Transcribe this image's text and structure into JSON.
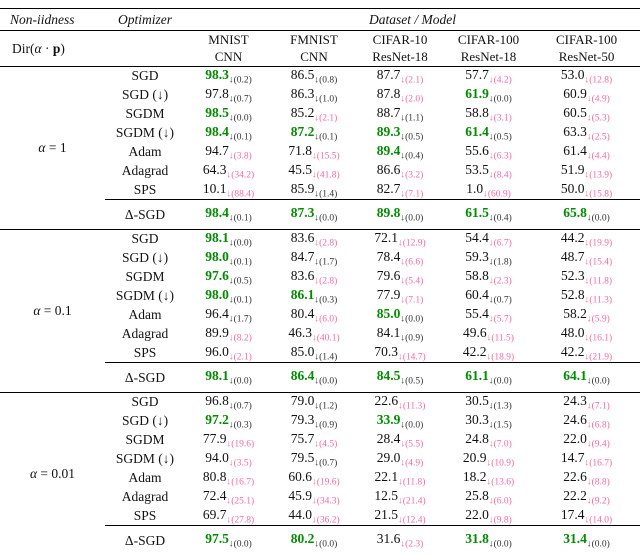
{
  "table": {
    "header": {
      "non_iidness": "Non-iidness",
      "optimizer": "Optimizer",
      "dataset_model": "Dataset / Model",
      "dir": {
        "pre": "Dir(",
        "alpha": "α",
        "dot": " · ",
        "p": "p",
        "post": ")"
      },
      "datasets": [
        {
          "dataset": "MNIST",
          "model": "CNN"
        },
        {
          "dataset": "FMNIST",
          "model": "CNN"
        },
        {
          "dataset": "CIFAR-10",
          "model": "ResNet-18"
        },
        {
          "dataset": "CIFAR-100",
          "model": "ResNet-18"
        },
        {
          "dataset": "CIFAR-100",
          "model": "ResNet-50"
        }
      ]
    },
    "legend": {
      "down_arrow": "↓"
    },
    "colors": {
      "best_green": "#028a02",
      "drop_pink": "#f26ba4",
      "text": "#111111"
    },
    "blocks": [
      {
        "alpha_symbol": "α",
        "alpha_eq": "= 1",
        "rows": [
          {
            "optimizer": "SGD",
            "cells": [
              [
                "98.3",
                "0.2",
                "g",
                "k"
              ],
              [
                "86.5",
                "0.8",
                "k",
                "k"
              ],
              [
                "87.7",
                "2.1",
                "k",
                "p"
              ],
              [
                "57.7",
                "4.2",
                "k",
                "p"
              ],
              [
                "53.0",
                "12.8",
                "k",
                "p"
              ]
            ]
          },
          {
            "optimizer": "SGD (↓)",
            "cells": [
              [
                "97.8",
                "0.7",
                "k",
                "k"
              ],
              [
                "86.3",
                "1.0",
                "k",
                "k"
              ],
              [
                "87.8",
                "2.0",
                "k",
                "p"
              ],
              [
                "61.9",
                "0.0",
                "g",
                "k"
              ],
              [
                "60.9",
                "4.9",
                "k",
                "p"
              ]
            ]
          },
          {
            "optimizer": "SGDM",
            "cells": [
              [
                "98.5",
                "0.0",
                "g",
                "k"
              ],
              [
                "85.2",
                "2.1",
                "k",
                "p"
              ],
              [
                "88.7",
                "1.1",
                "k",
                "k"
              ],
              [
                "58.8",
                "3.1",
                "k",
                "p"
              ],
              [
                "60.5",
                "5.3",
                "k",
                "p"
              ]
            ]
          },
          {
            "optimizer": "SGDM (↓)",
            "cells": [
              [
                "98.4",
                "0.1",
                "g",
                "k"
              ],
              [
                "87.2",
                "0.1",
                "g",
                "k"
              ],
              [
                "89.3",
                "0.5",
                "g",
                "k"
              ],
              [
                "61.4",
                "0.5",
                "g",
                "k"
              ],
              [
                "63.3",
                "2.5",
                "k",
                "p"
              ]
            ]
          },
          {
            "optimizer": "Adam",
            "cells": [
              [
                "94.7",
                "3.8",
                "k",
                "p"
              ],
              [
                "71.8",
                "15.5",
                "k",
                "p"
              ],
              [
                "89.4",
                "0.4",
                "g",
                "k"
              ],
              [
                "55.6",
                "6.3",
                "k",
                "p"
              ],
              [
                "61.4",
                "4.4",
                "k",
                "p"
              ]
            ]
          },
          {
            "optimizer": "Adagrad",
            "cells": [
              [
                "64.3",
                "34.2",
                "k",
                "p"
              ],
              [
                "45.5",
                "41.8",
                "k",
                "p"
              ],
              [
                "86.6",
                "3.2",
                "k",
                "p"
              ],
              [
                "53.5",
                "8.4",
                "k",
                "p"
              ],
              [
                "51.9",
                "13.9",
                "k",
                "p"
              ]
            ]
          },
          {
            "optimizer": "SPS",
            "cells": [
              [
                "10.1",
                "88.4",
                "k",
                "p"
              ],
              [
                "85.9",
                "1.4",
                "k",
                "k"
              ],
              [
                "82.7",
                "7.1",
                "k",
                "p"
              ],
              [
                "1.0",
                "60.9",
                "k",
                "p"
              ],
              [
                "50.0",
                "15.8",
                "k",
                "p"
              ]
            ]
          }
        ],
        "delta": {
          "optimizer": "Δ-SGD",
          "cells": [
            [
              "98.4",
              "0.1",
              "g",
              "k"
            ],
            [
              "87.3",
              "0.0",
              "g",
              "k"
            ],
            [
              "89.8",
              "0.0",
              "g",
              "k"
            ],
            [
              "61.5",
              "0.4",
              "g",
              "k"
            ],
            [
              "65.8",
              "0.0",
              "g",
              "k"
            ]
          ]
        }
      },
      {
        "alpha_symbol": "α",
        "alpha_eq": "= 0.1",
        "rows": [
          {
            "optimizer": "SGD",
            "cells": [
              [
                "98.1",
                "0.0",
                "g",
                "k"
              ],
              [
                "83.6",
                "2.8",
                "k",
                "p"
              ],
              [
                "72.1",
                "12.9",
                "k",
                "p"
              ],
              [
                "54.4",
                "6.7",
                "k",
                "p"
              ],
              [
                "44.2",
                "19.9",
                "k",
                "p"
              ]
            ]
          },
          {
            "optimizer": "SGD (↓)",
            "cells": [
              [
                "98.0",
                "0.1",
                "g",
                "k"
              ],
              [
                "84.7",
                "1.7",
                "k",
                "k"
              ],
              [
                "78.4",
                "6.6",
                "k",
                "p"
              ],
              [
                "59.3",
                "1.8",
                "k",
                "k"
              ],
              [
                "48.7",
                "15.4",
                "k",
                "p"
              ]
            ]
          },
          {
            "optimizer": "SGDM",
            "cells": [
              [
                "97.6",
                "0.5",
                "g",
                "k"
              ],
              [
                "83.6",
                "2.8",
                "k",
                "p"
              ],
              [
                "79.6",
                "5.4",
                "k",
                "p"
              ],
              [
                "58.8",
                "2.3",
                "k",
                "p"
              ],
              [
                "52.3",
                "11.8",
                "k",
                "p"
              ]
            ]
          },
          {
            "optimizer": "SGDM (↓)",
            "cells": [
              [
                "98.0",
                "0.1",
                "g",
                "k"
              ],
              [
                "86.1",
                "0.3",
                "g",
                "k"
              ],
              [
                "77.9",
                "7.1",
                "k",
                "p"
              ],
              [
                "60.4",
                "0.7",
                "k",
                "k"
              ],
              [
                "52.8",
                "11.3",
                "k",
                "p"
              ]
            ]
          },
          {
            "optimizer": "Adam",
            "cells": [
              [
                "96.4",
                "1.7",
                "k",
                "k"
              ],
              [
                "80.4",
                "6.0",
                "k",
                "p"
              ],
              [
                "85.0",
                "0.0",
                "g",
                "k"
              ],
              [
                "55.4",
                "5.7",
                "k",
                "p"
              ],
              [
                "58.2",
                "5.9",
                "k",
                "p"
              ]
            ]
          },
          {
            "optimizer": "Adagrad",
            "cells": [
              [
                "89.9",
                "8.2",
                "k",
                "p"
              ],
              [
                "46.3",
                "40.1",
                "k",
                "p"
              ],
              [
                "84.1",
                "0.9",
                "k",
                "k"
              ],
              [
                "49.6",
                "11.5",
                "k",
                "p"
              ],
              [
                "48.0",
                "16.1",
                "k",
                "p"
              ]
            ]
          },
          {
            "optimizer": "SPS",
            "cells": [
              [
                "96.0",
                "2.1",
                "k",
                "p"
              ],
              [
                "85.0",
                "1.4",
                "k",
                "k"
              ],
              [
                "70.3",
                "14.7",
                "k",
                "p"
              ],
              [
                "42.2",
                "18.9",
                "k",
                "p"
              ],
              [
                "42.2",
                "21.9",
                "k",
                "p"
              ]
            ]
          }
        ],
        "delta": {
          "optimizer": "Δ-SGD",
          "cells": [
            [
              "98.1",
              "0.0",
              "g",
              "k"
            ],
            [
              "86.4",
              "0.0",
              "g",
              "k"
            ],
            [
              "84.5",
              "0.5",
              "g",
              "k"
            ],
            [
              "61.1",
              "0.0",
              "g",
              "k"
            ],
            [
              "64.1",
              "0.0",
              "g",
              "k"
            ]
          ]
        }
      },
      {
        "alpha_symbol": "α",
        "alpha_eq": "= 0.01",
        "rows": [
          {
            "optimizer": "SGD",
            "cells": [
              [
                "96.8",
                "0.7",
                "k",
                "k"
              ],
              [
                "79.0",
                "1.2",
                "k",
                "k"
              ],
              [
                "22.6",
                "11.3",
                "k",
                "p"
              ],
              [
                "30.5",
                "1.3",
                "k",
                "k"
              ],
              [
                "24.3",
                "7.1",
                "k",
                "p"
              ]
            ]
          },
          {
            "optimizer": "SGD (↓)",
            "cells": [
              [
                "97.2",
                "0.3",
                "g",
                "k"
              ],
              [
                "79.3",
                "0.9",
                "k",
                "k"
              ],
              [
                "33.9",
                "0.0",
                "g",
                "k"
              ],
              [
                "30.3",
                "1.5",
                "k",
                "k"
              ],
              [
                "24.6",
                "6.8",
                "k",
                "p"
              ]
            ]
          },
          {
            "optimizer": "SGDM",
            "cells": [
              [
                "77.9",
                "19.6",
                "k",
                "p"
              ],
              [
                "75.7",
                "4.5",
                "k",
                "p"
              ],
              [
                "28.4",
                "5.5",
                "k",
                "p"
              ],
              [
                "24.8",
                "7.0",
                "k",
                "p"
              ],
              [
                "22.0",
                "9.4",
                "k",
                "p"
              ]
            ]
          },
          {
            "optimizer": "SGDM (↓)",
            "cells": [
              [
                "94.0",
                "3.5",
                "k",
                "p"
              ],
              [
                "79.5",
                "0.7",
                "k",
                "k"
              ],
              [
                "29.0",
                "4.9",
                "k",
                "p"
              ],
              [
                "20.9",
                "10.9",
                "k",
                "p"
              ],
              [
                "14.7",
                "16.7",
                "k",
                "p"
              ]
            ]
          },
          {
            "optimizer": "Adam",
            "cells": [
              [
                "80.8",
                "16.7",
                "k",
                "p"
              ],
              [
                "60.6",
                "19.6",
                "k",
                "p"
              ],
              [
                "22.1",
                "11.8",
                "k",
                "p"
              ],
              [
                "18.2",
                "13.6",
                "k",
                "p"
              ],
              [
                "22.6",
                "8.8",
                "k",
                "p"
              ]
            ]
          },
          {
            "optimizer": "Adagrad",
            "cells": [
              [
                "72.4",
                "25.1",
                "k",
                "p"
              ],
              [
                "45.9",
                "34.3",
                "k",
                "p"
              ],
              [
                "12.5",
                "21.4",
                "k",
                "p"
              ],
              [
                "25.8",
                "6.0",
                "k",
                "p"
              ],
              [
                "22.2",
                "9.2",
                "k",
                "p"
              ]
            ]
          },
          {
            "optimizer": "SPS",
            "cells": [
              [
                "69.7",
                "27.8",
                "k",
                "p"
              ],
              [
                "44.0",
                "36.2",
                "k",
                "p"
              ],
              [
                "21.5",
                "12.4",
                "k",
                "p"
              ],
              [
                "22.0",
                "9.8",
                "k",
                "p"
              ],
              [
                "17.4",
                "14.0",
                "k",
                "p"
              ]
            ]
          }
        ],
        "delta": {
          "optimizer": "Δ-SGD",
          "cells": [
            [
              "97.5",
              "0.0",
              "g",
              "k"
            ],
            [
              "80.2",
              "0.0",
              "g",
              "k"
            ],
            [
              "31.6",
              "2.3",
              "k",
              "p"
            ],
            [
              "31.8",
              "0.0",
              "g",
              "k"
            ],
            [
              "31.4",
              "0.0",
              "g",
              "k"
            ]
          ]
        }
      }
    ]
  }
}
